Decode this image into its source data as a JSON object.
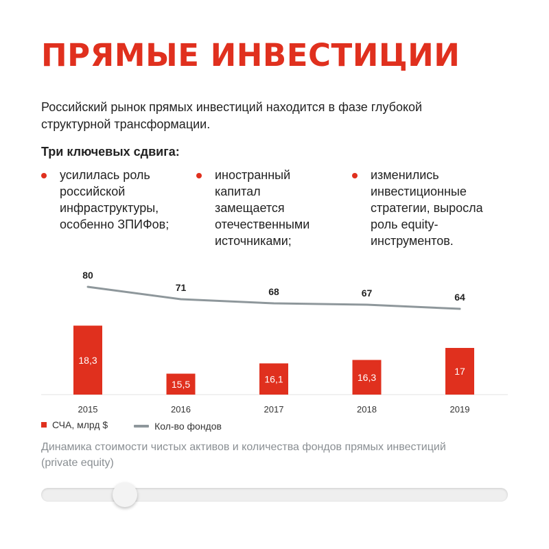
{
  "header": {
    "title": "ПРЯМЫЕ ИНВЕСТИЦИИ"
  },
  "intro": "Российский рынок прямых инвестиций находится в фазе глубокой структурной трансформации.",
  "shifts": {
    "heading": "Три ключевых сдвига:",
    "items": [
      "усилилась роль российской инфраструктуры, особенно ЗПИФов;",
      "иностранный капитал замещается отечественными источниками;",
      "изменились инвестиционные стратегии, выросла роль equity-инструментов."
    ]
  },
  "chart_data": {
    "type": "bar",
    "categories": [
      "2015",
      "2016",
      "2017",
      "2018",
      "2019"
    ],
    "series": [
      {
        "name": "СЧА, млрд $",
        "type": "bar",
        "values": [
          18.3,
          15.5,
          16.1,
          16.3,
          17.0
        ],
        "labels": [
          "18,3",
          "15,5",
          "16,1",
          "16,3",
          "17"
        ],
        "color": "#e0301e"
      },
      {
        "name": "Кол-во фондов",
        "type": "line",
        "values": [
          80,
          71,
          68,
          67,
          64
        ],
        "labels": [
          "80",
          "71",
          "68",
          "67",
          "64"
        ],
        "color": "#8e979b"
      }
    ],
    "title": "",
    "xlabel": "",
    "ylabel": "",
    "legend_position": "bottom-left",
    "grid": false
  },
  "caption": "Динамика стоимости чистых активов и количества фондов прямых инвестиций (private equity)",
  "slider": {
    "value": 0.18
  }
}
